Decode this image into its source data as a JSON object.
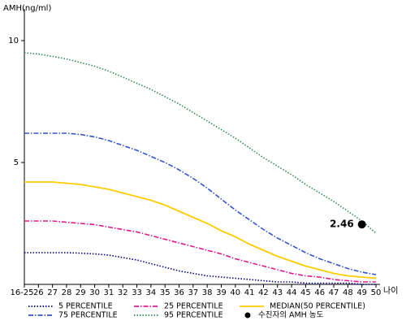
{
  "chart_data": {
    "type": "line",
    "y_label": "AMH(ng/ml)",
    "x_label": "나이",
    "categories": [
      "16-25",
      "26",
      "27",
      "28",
      "29",
      "30",
      "31",
      "32",
      "33",
      "34",
      "35",
      "36",
      "37",
      "38",
      "39",
      "40",
      "41",
      "42",
      "43",
      "44",
      "45",
      "46",
      "47",
      "48",
      "49",
      "50"
    ],
    "ylim": [
      0,
      11.3
    ],
    "yticks": [
      5,
      10
    ],
    "series": [
      {
        "name": "5 PERCENTILE",
        "color": "#000080",
        "dash": "dotted",
        "values": [
          1.3,
          1.3,
          1.3,
          1.3,
          1.28,
          1.25,
          1.2,
          1.1,
          1.0,
          0.85,
          0.7,
          0.55,
          0.45,
          0.35,
          0.3,
          0.25,
          0.2,
          0.15,
          0.1,
          0.1,
          0.05,
          0.05,
          0.05,
          0.05,
          0.0,
          0.0
        ]
      },
      {
        "name": "25 PERCENTILE",
        "color": "#e0198c",
        "dash": "dashdot",
        "values": [
          2.6,
          2.6,
          2.6,
          2.55,
          2.5,
          2.45,
          2.35,
          2.25,
          2.15,
          2.0,
          1.85,
          1.7,
          1.55,
          1.4,
          1.25,
          1.05,
          0.9,
          0.75,
          0.6,
          0.45,
          0.35,
          0.3,
          0.2,
          0.15,
          0.1,
          0.1
        ]
      },
      {
        "name": "MEDIAN(50 PERCENTILE)",
        "color": "#ffcc00",
        "dash": "solid",
        "values": [
          4.2,
          4.2,
          4.2,
          4.15,
          4.1,
          4.0,
          3.9,
          3.75,
          3.6,
          3.45,
          3.25,
          3.0,
          2.75,
          2.5,
          2.2,
          1.95,
          1.65,
          1.4,
          1.15,
          0.95,
          0.75,
          0.6,
          0.45,
          0.35,
          0.3,
          0.25
        ]
      },
      {
        "name": "75 PERCENTILE",
        "color": "#3355cc",
        "dash": "dashdot",
        "values": [
          6.2,
          6.2,
          6.2,
          6.2,
          6.15,
          6.05,
          5.9,
          5.7,
          5.5,
          5.25,
          5.0,
          4.7,
          4.35,
          3.95,
          3.5,
          3.05,
          2.65,
          2.25,
          1.9,
          1.6,
          1.3,
          1.05,
          0.85,
          0.65,
          0.5,
          0.4
        ]
      },
      {
        "name": "95 PERCENTILE",
        "color": "#2e8b57",
        "dash": "dotted",
        "values": [
          9.5,
          9.45,
          9.35,
          9.25,
          9.1,
          8.95,
          8.75,
          8.5,
          8.25,
          8.0,
          7.7,
          7.4,
          7.05,
          6.7,
          6.35,
          6.0,
          5.6,
          5.2,
          4.85,
          4.5,
          4.1,
          3.75,
          3.4,
          3.0,
          2.6,
          2.1
        ]
      },
      {
        "name": "수진자의 AMH 농도",
        "color": "#000000",
        "dash": "marker",
        "values": [
          null,
          null,
          null,
          null,
          null,
          null,
          null,
          null,
          null,
          null,
          null,
          null,
          null,
          null,
          null,
          null,
          null,
          null,
          null,
          null,
          null,
          null,
          null,
          null,
          2.46,
          null
        ]
      }
    ]
  }
}
